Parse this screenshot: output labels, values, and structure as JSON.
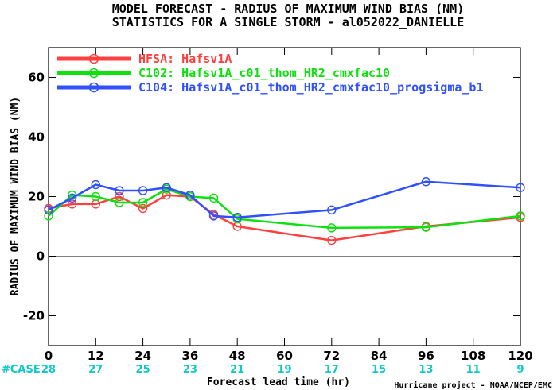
{
  "chart_data": {
    "type": "line",
    "title": "MODEL FORECAST - RADIUS OF MAXIMUM WIND BIAS (NM)",
    "subtitle": "STATISTICS FOR A SINGLE STORM - al052022_DANIELLE",
    "xlabel": "Forecast lead time (hr)",
    "ylabel": "RADIUS OF MAXIMUM WIND BIAS (NM)",
    "xlim": [
      0,
      120
    ],
    "ylim": [
      -30,
      70
    ],
    "xticks": [
      0,
      12,
      24,
      36,
      48,
      60,
      72,
      84,
      96,
      108,
      120
    ],
    "yticks": [
      -20,
      0,
      20,
      40,
      60
    ],
    "ytick_labels": [
      "-20",
      "0",
      "20",
      "40",
      "60"
    ],
    "case_label": "#CASE",
    "case_counts": [
      "28",
      "27",
      "25",
      "23",
      "21",
      "19",
      "17",
      "15",
      "13",
      "11",
      "9"
    ],
    "legend_position": "top-left",
    "grid": false,
    "credit": "Hurricane project - NOAA/NCEP/EMC",
    "series": [
      {
        "name": "HFSA: Hafsv1A",
        "color": "#ff4040",
        "x": [
          0,
          6,
          12,
          18,
          24,
          30,
          36,
          42,
          48,
          72,
          96,
          120
        ],
        "y": [
          16,
          17.5,
          17.5,
          20,
          16,
          20.5,
          20,
          14,
          10,
          5.3,
          10,
          13
        ]
      },
      {
        "name": "C102: Hafsv1A_c01_thom_HR2_cmxfac10",
        "color": "#10e010",
        "x": [
          0,
          6,
          12,
          18,
          24,
          30,
          36,
          42,
          48,
          72,
          96,
          120
        ],
        "y": [
          13.5,
          20.5,
          20,
          18,
          18,
          22.5,
          20,
          19.5,
          12.5,
          9.5,
          9.7,
          13.5
        ]
      },
      {
        "name": "C104: Hafsv1A_c01_thom_HR2_cmxfac10_progsigma_b1",
        "color": "#3050ff",
        "x": [
          0,
          6,
          12,
          18,
          24,
          30,
          36,
          42,
          48,
          72,
          96,
          120
        ],
        "y": [
          15.5,
          19.5,
          24,
          22,
          22,
          23,
          20.5,
          13.5,
          13,
          15.5,
          25,
          23
        ]
      }
    ]
  }
}
